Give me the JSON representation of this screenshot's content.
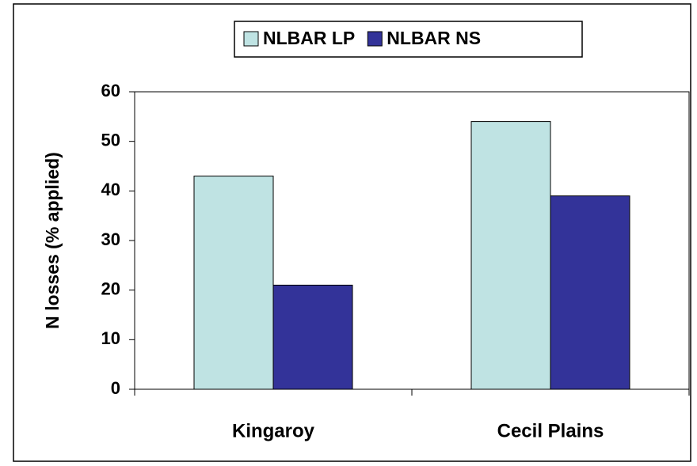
{
  "chart_data": {
    "type": "bar",
    "y_label": "N losses (% applied)",
    "categories": [
      "Kingaroy",
      "Cecil Plains"
    ],
    "series": [
      {
        "name": "NLBAR LP",
        "color": "#bfe3e3",
        "values": [
          43,
          54
        ]
      },
      {
        "name": "NLBAR NS",
        "color": "#333399",
        "values": [
          21,
          39
        ]
      }
    ],
    "ylim": [
      0,
      60
    ],
    "yticks": [
      0,
      10,
      20,
      30,
      40,
      50,
      60
    ],
    "legend": "top"
  }
}
